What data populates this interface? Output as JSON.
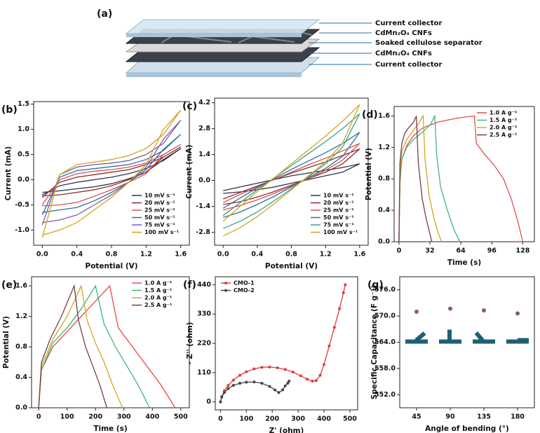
{
  "schematic": {
    "label": "(a)",
    "layers": [
      "Current collector",
      "CdMn₂O₄ CNFs",
      "Soaked cellulose separator",
      "CdMn₂O₄ CNFs",
      "Current collector"
    ]
  },
  "chart_data": [
    {
      "type": "line",
      "label": "(b)",
      "xlabel": "Potential (V)",
      "ylabel": "Current (mA)",
      "x": [
        0,
        0.2,
        0.4,
        0.6,
        0.8,
        1.0,
        1.2,
        1.4,
        1.6,
        1.4,
        1.2,
        1.0,
        0.8,
        0.6,
        0.4,
        0.2,
        0
      ],
      "xlim": [
        -0.1,
        1.7
      ],
      "xticks": [
        {
          "value": 0,
          "label": "0.0"
        },
        0.4,
        0.8,
        1.2,
        1.6
      ],
      "ylim": [
        -1.3,
        1.55
      ],
      "yticks": [
        {
          "value": -1,
          "label": "-1.0"
        },
        -0.5,
        {
          "value": 0,
          "label": "0.0"
        },
        0.5,
        {
          "value": 1,
          "label": "1.0"
        },
        1.5
      ],
      "legend": "lower right",
      "series": [
        {
          "name": "10 mV s⁻¹",
          "color": "#2f3547",
          "values": [
            -0.3,
            -0.12,
            -0.05,
            0.0,
            0.05,
            0.12,
            0.22,
            0.38,
            0.62,
            0.4,
            0.15,
            0.02,
            -0.08,
            -0.14,
            -0.18,
            -0.22,
            -0.25
          ]
        },
        {
          "name": "20 mV s⁻¹",
          "color": "#8c2b2b",
          "values": [
            -0.35,
            -0.05,
            0.05,
            0.1,
            0.15,
            0.2,
            0.3,
            0.45,
            0.65,
            0.45,
            0.15,
            0.0,
            -0.12,
            -0.2,
            -0.25,
            -0.3,
            -0.32
          ]
        },
        {
          "name": "25 mV s⁻¹",
          "color": "#d94f4f",
          "values": [
            -0.5,
            0.0,
            0.12,
            0.17,
            0.2,
            0.25,
            0.33,
            0.5,
            0.7,
            0.5,
            0.12,
            -0.05,
            -0.2,
            -0.33,
            -0.45,
            -0.5,
            -0.52
          ]
        },
        {
          "name": "50 mV s⁻¹",
          "color": "#2e6f9e",
          "values": [
            -0.7,
            0.05,
            0.18,
            0.22,
            0.26,
            0.3,
            0.4,
            0.58,
            0.9,
            0.6,
            0.2,
            -0.05,
            -0.25,
            -0.42,
            -0.55,
            -0.6,
            -0.65
          ]
        },
        {
          "name": "75 mV s⁻¹",
          "color": "#7a5ca8",
          "values": [
            -0.9,
            0.1,
            0.25,
            0.3,
            0.33,
            0.38,
            0.5,
            0.72,
            1.18,
            0.8,
            0.25,
            -0.05,
            -0.3,
            -0.5,
            -0.7,
            -0.8,
            -0.85
          ]
        },
        {
          "name": "100 mV s⁻¹",
          "color": "#d4a520",
          "values": [
            -1.15,
            0.1,
            0.3,
            0.35,
            0.4,
            0.48,
            0.62,
            0.9,
            1.38,
            1.0,
            0.3,
            -0.05,
            -0.35,
            -0.6,
            -0.85,
            -1.0,
            -1.1
          ]
        }
      ]
    },
    {
      "type": "line",
      "label": "(c)",
      "xlabel": "Potential (V)",
      "ylabel": "Current (mA)",
      "x": [
        0,
        0.2,
        0.4,
        0.6,
        0.8,
        1.0,
        1.2,
        1.4,
        1.6,
        1.4,
        1.2,
        1.0,
        0.8,
        0.6,
        0.4,
        0.2,
        0
      ],
      "xlim": [
        -0.1,
        1.7
      ],
      "xticks": [
        {
          "value": 0,
          "label": "0.0"
        },
        0.4,
        0.8,
        1.2,
        1.6
      ],
      "ylim": [
        -3.5,
        4.45
      ],
      "yticks": [
        -2.8,
        -1.4,
        {
          "value": 0,
          "label": "0.0"
        },
        1.4,
        2.8,
        4.2
      ],
      "legend": "lower right",
      "series": [
        {
          "name": "10 mV s⁻¹",
          "color": "#2f3547",
          "values": [
            -0.55,
            -0.35,
            -0.15,
            0.05,
            0.25,
            0.4,
            0.55,
            0.7,
            0.9,
            0.45,
            0.25,
            0.05,
            -0.15,
            -0.35,
            -0.5,
            -0.62,
            -0.7
          ]
        },
        {
          "name": "20 mV s⁻¹",
          "color": "#8c2b2b",
          "values": [
            -1.0,
            -0.65,
            -0.3,
            0.05,
            0.4,
            0.7,
            1.0,
            1.35,
            1.7,
            0.9,
            0.45,
            0.1,
            -0.25,
            -0.6,
            -0.9,
            -1.15,
            -1.3
          ]
        },
        {
          "name": "25 mV s⁻¹",
          "color": "#d94f4f",
          "values": [
            -1.2,
            -0.75,
            -0.35,
            0.05,
            0.45,
            0.85,
            1.2,
            1.6,
            2.0,
            1.1,
            0.55,
            0.1,
            -0.3,
            -0.7,
            -1.05,
            -1.35,
            -1.6
          ]
        },
        {
          "name": "50 mV s⁻¹",
          "color": "#2e6f9e",
          "values": [
            -1.5,
            -0.95,
            -0.4,
            0.1,
            0.6,
            1.05,
            1.5,
            2.0,
            2.6,
            1.3,
            0.65,
            0.15,
            -0.35,
            -0.85,
            -1.3,
            -1.7,
            -2.0
          ]
        },
        {
          "name": "75 mV s⁻¹",
          "color": "#3aa08a",
          "values": [
            -1.9,
            -1.2,
            -0.5,
            0.15,
            0.8,
            1.45,
            2.1,
            2.8,
            3.6,
            1.8,
            0.9,
            0.2,
            -0.45,
            -1.1,
            -1.7,
            -2.2,
            -2.6
          ]
        },
        {
          "name": "100 mV s⁻¹",
          "color": "#d4a520",
          "values": [
            -2.2,
            -1.4,
            -0.6,
            0.15,
            0.9,
            1.65,
            2.4,
            3.2,
            4.1,
            2.0,
            1.0,
            0.25,
            -0.5,
            -1.25,
            -1.95,
            -2.55,
            -3.0
          ]
        }
      ]
    },
    {
      "type": "line",
      "label": "(d)",
      "xlabel": "Time (s)",
      "ylabel": "Potential (V)",
      "xlim": [
        -5,
        140
      ],
      "xticks": [
        0,
        32,
        64,
        96,
        128
      ],
      "ylim": [
        0,
        1.72
      ],
      "yticks": [
        {
          "value": 0,
          "label": "0.0"
        },
        0.4,
        0.8,
        1.2,
        1.6
      ],
      "legend": "upper right",
      "series": [
        {
          "name": "1.0 A g⁻¹",
          "color": "#e84a4a",
          "x": [
            0,
            1,
            3,
            8,
            15,
            25,
            40,
            55,
            70,
            78,
            80,
            88,
            98,
            108,
            116,
            123,
            128
          ],
          "values": [
            0,
            0.75,
            1.05,
            1.22,
            1.35,
            1.45,
            1.52,
            1.56,
            1.59,
            1.6,
            1.25,
            1.12,
            0.98,
            0.8,
            0.55,
            0.25,
            0
          ]
        },
        {
          "name": "1.5 A g⁻¹",
          "color": "#3cb878",
          "x": [
            0,
            1,
            3,
            8,
            15,
            25,
            33,
            37,
            39,
            43,
            50,
            57,
            63
          ],
          "values": [
            0,
            0.8,
            1.05,
            1.2,
            1.3,
            1.4,
            1.5,
            1.6,
            1.1,
            0.7,
            0.4,
            0.15,
            0
          ]
        },
        {
          "name": "2.0 A g⁻¹",
          "color": "#d4a520",
          "x": [
            0,
            1,
            3,
            8,
            14,
            20,
            25,
            27,
            31,
            36,
            41,
            44
          ],
          "values": [
            0,
            0.9,
            1.15,
            1.3,
            1.4,
            1.5,
            1.6,
            1.05,
            0.6,
            0.3,
            0.1,
            0
          ]
        },
        {
          "name": "2.5 A g⁻¹",
          "color": "#7a3a4a",
          "x": [
            0,
            1,
            3,
            6,
            10,
            15,
            18,
            20,
            24,
            28,
            32,
            34
          ],
          "values": [
            0,
            1.0,
            1.25,
            1.38,
            1.45,
            1.52,
            1.6,
            1.0,
            0.55,
            0.3,
            0.1,
            0
          ]
        }
      ]
    },
    {
      "type": "line",
      "label": "(e)",
      "xlabel": "Time (s)",
      "ylabel": "Potential (V)",
      "xlim": [
        -25,
        530
      ],
      "xticks": [
        0,
        100,
        200,
        300,
        400,
        500
      ],
      "ylim": [
        0,
        1.72
      ],
      "yticks": [
        {
          "value": 0,
          "label": "0.0"
        },
        0.4,
        0.8,
        1.2,
        1.6
      ],
      "legend": "upper right",
      "series": [
        {
          "name": "1.0 A g⁻¹",
          "color": "#e84a4a",
          "x": [
            0,
            10,
            50,
            100,
            150,
            200,
            250,
            280,
            330,
            380,
            430,
            480
          ],
          "values": [
            0,
            0.5,
            0.8,
            1.0,
            1.2,
            1.4,
            1.6,
            1.05,
            0.8,
            0.55,
            0.3,
            0
          ]
        },
        {
          "name": "1.5 A g⁻¹",
          "color": "#3cb878",
          "x": [
            0,
            10,
            50,
            100,
            150,
            200,
            230,
            270,
            310,
            350,
            390
          ],
          "values": [
            0,
            0.5,
            0.85,
            1.05,
            1.3,
            1.6,
            1.1,
            0.8,
            0.55,
            0.3,
            0
          ]
        },
        {
          "name": "2.0 A g⁻¹",
          "color": "#d4a520",
          "x": [
            0,
            10,
            50,
            100,
            150,
            170,
            200,
            230,
            260,
            295
          ],
          "values": [
            0,
            0.55,
            0.9,
            1.2,
            1.6,
            1.15,
            0.85,
            0.6,
            0.3,
            0
          ]
        },
        {
          "name": "2.5 A g⁻¹",
          "color": "#7a3a4a",
          "x": [
            0,
            10,
            40,
            80,
            125,
            140,
            165,
            190,
            215,
            240
          ],
          "values": [
            0,
            0.6,
            0.9,
            1.2,
            1.6,
            1.15,
            0.8,
            0.55,
            0.3,
            0
          ]
        }
      ]
    },
    {
      "type": "line",
      "label": "(f)",
      "xlabel": "Z' (ohm)",
      "ylabel": "- Z'' (ohm)",
      "markers": true,
      "xlim": [
        -20,
        530
      ],
      "xticks": [
        0,
        100,
        200,
        300,
        400,
        500
      ],
      "ylim": [
        -30,
        470
      ],
      "yticks": [
        0,
        110,
        220,
        330,
        440
      ],
      "legend": "upper left",
      "series": [
        {
          "name": "CMO-1",
          "color": "#e03b3b",
          "x": [
            0,
            5,
            15,
            30,
            50,
            75,
            100,
            130,
            160,
            190,
            220,
            250,
            280,
            310,
            335,
            355,
            370,
            385,
            400,
            420,
            440,
            460,
            475,
            482
          ],
          "values": [
            0,
            20,
            42,
            62,
            82,
            100,
            113,
            124,
            130,
            131,
            128,
            122,
            112,
            98,
            85,
            78,
            80,
            100,
            140,
            210,
            280,
            350,
            410,
            440
          ]
        },
        {
          "name": "CMO-2",
          "color": "#444444",
          "x": [
            0,
            5,
            15,
            30,
            50,
            75,
            100,
            130,
            160,
            190,
            210,
            225,
            240,
            250,
            260,
            265
          ],
          "values": [
            0,
            18,
            35,
            50,
            62,
            70,
            74,
            75,
            70,
            58,
            45,
            35,
            45,
            60,
            70,
            78
          ]
        }
      ]
    },
    {
      "type": "scatter",
      "label": "(g)",
      "xlabel": "Angle of bending (°)",
      "ylabel": "Specific Capacitance (F g⁻¹)",
      "categories": [
        "45",
        "90",
        "135",
        "180"
      ],
      "values": [
        571.0,
        571.7,
        571.3,
        570.6
      ],
      "color": "#8b5a6b",
      "ylim": [
        549,
        579
      ],
      "yticks": [
        {
          "value": 552,
          "label": "552.0"
        },
        {
          "value": 558,
          "label": "558.0"
        },
        {
          "value": 564,
          "label": "564.0"
        },
        {
          "value": 570,
          "label": "570.0"
        },
        {
          "value": 576,
          "label": "576.0"
        }
      ]
    }
  ]
}
